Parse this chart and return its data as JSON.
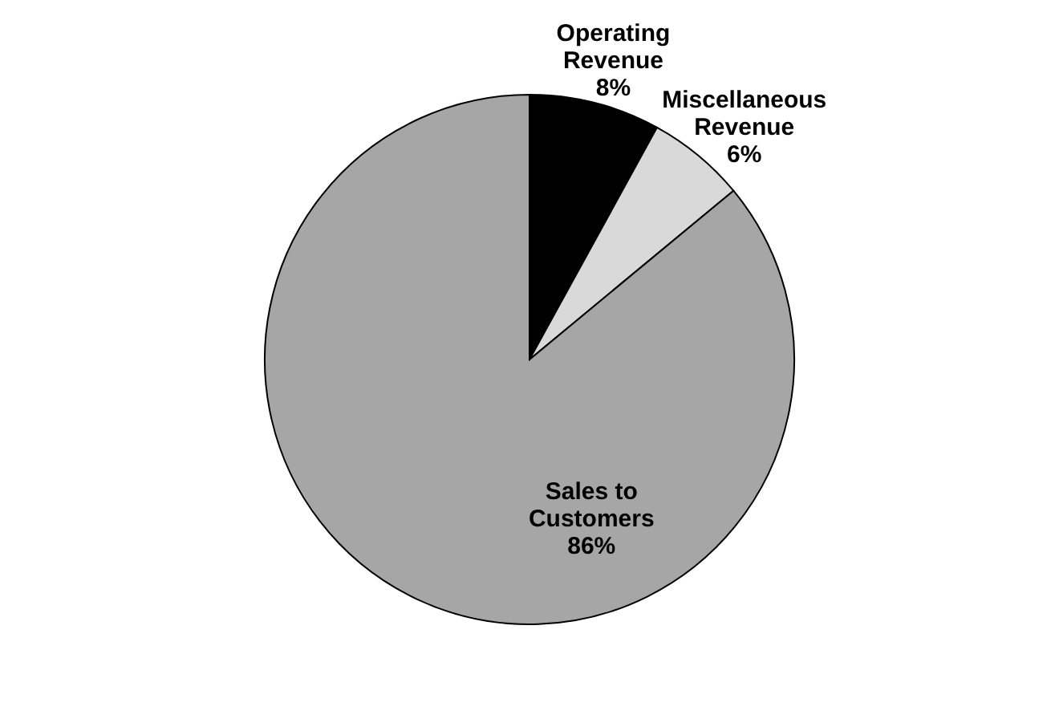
{
  "chart_data": {
    "type": "pie",
    "categories": [
      "Operating Revenue",
      "Miscellaneous Revenue",
      "Sales to Customers"
    ],
    "values": [
      8,
      6,
      86
    ],
    "colors": [
      "#000000",
      "#d9d9d9",
      "#a6a6a6"
    ],
    "value_labels": [
      "8%",
      "6%",
      "86%"
    ],
    "legend": false
  }
}
